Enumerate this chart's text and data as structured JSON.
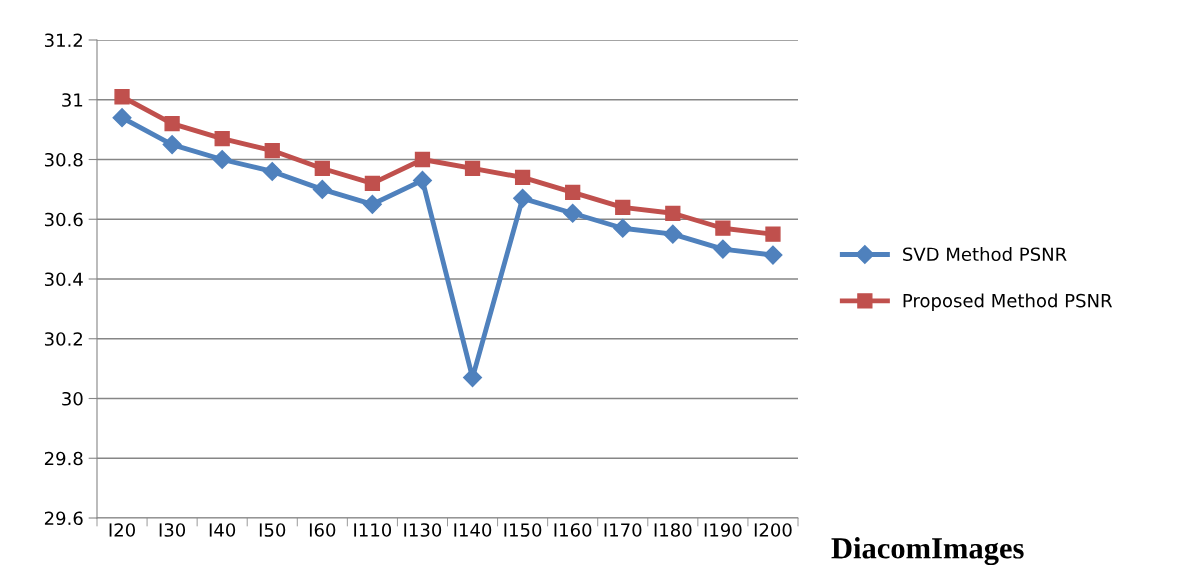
{
  "chart_data": {
    "type": "line",
    "xlabel": "DiacomImages",
    "categories": [
      "I20",
      "I30",
      "I40",
      "I50",
      "I60",
      "I110",
      "I130",
      "I140",
      "I150",
      "I160",
      "I170",
      "I180",
      "I190",
      "I200"
    ],
    "series": [
      {
        "name": "SVD Method PSNR",
        "color": "#4f81bd",
        "marker": "diamond",
        "values": [
          30.94,
          30.85,
          30.8,
          30.76,
          30.7,
          30.65,
          30.73,
          30.07,
          30.67,
          30.62,
          30.57,
          30.55,
          30.5,
          30.48
        ]
      },
      {
        "name": "Proposed Method PSNR",
        "color": "#c0504d",
        "marker": "square",
        "values": [
          31.01,
          30.92,
          30.87,
          30.83,
          30.77,
          30.72,
          30.8,
          30.77,
          30.74,
          30.69,
          30.64,
          30.62,
          30.57,
          30.55
        ]
      }
    ],
    "ylim": [
      29.6,
      31.2
    ],
    "yticks": [
      29.6,
      29.8,
      {
        "value": 30,
        "label": "30"
      },
      30.2,
      30.4,
      30.6,
      30.8,
      {
        "value": 31,
        "label": "31"
      },
      31.2
    ],
    "grid": "y",
    "legend": "right",
    "line_style": "solid"
  }
}
